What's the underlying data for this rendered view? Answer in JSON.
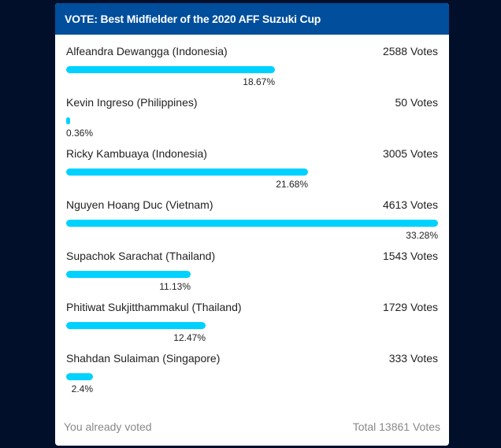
{
  "poll": {
    "title": "VOTE: Best Midfielder of the 2020 AFF Suzuki Cup",
    "bar_color": "#00d2ff",
    "header_color": "#004e9c",
    "options": [
      {
        "name": "Alfeandra Dewangga (Indonesia)",
        "votes": "2588 Votes",
        "percent_label": "18.67%",
        "percent": 18.67
      },
      {
        "name": "Kevin Ingreso (Philippines)",
        "votes": "50 Votes",
        "percent_label": "0.36%",
        "percent": 0.36
      },
      {
        "name": "Ricky Kambuaya (Indonesia)",
        "votes": "3005 Votes",
        "percent_label": "21.68%",
        "percent": 21.68
      },
      {
        "name": "Nguyen Hoang Duc (Vietnam)",
        "votes": "4613 Votes",
        "percent_label": "33.28%",
        "percent": 33.28
      },
      {
        "name": "Supachok Sarachat (Thailand)",
        "votes": "1543 Votes",
        "percent_label": "11.13%",
        "percent": 11.13
      },
      {
        "name": "Phitiwat Sukjitthammakul (Thailand)",
        "votes": "1729 Votes",
        "percent_label": "12.47%",
        "percent": 12.47
      },
      {
        "name": "Shahdan Sulaiman (Singapore)",
        "votes": "333 Votes",
        "percent_label": "2.4%",
        "percent": 2.4
      }
    ],
    "status": "You already voted",
    "total": "Total 13861 Votes"
  }
}
